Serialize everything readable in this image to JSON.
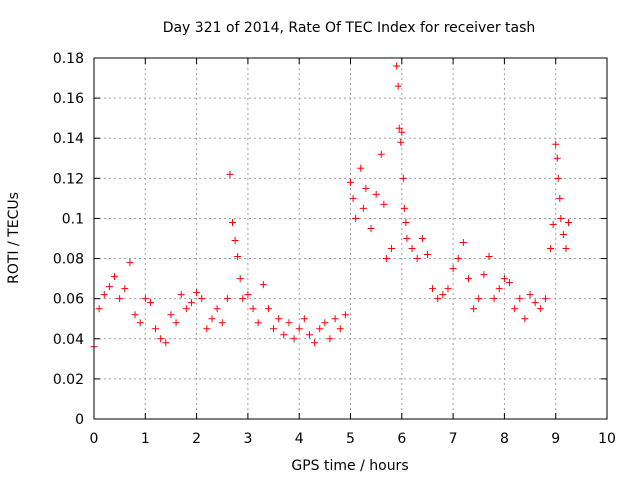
{
  "chart_data": {
    "type": "scatter",
    "title": "Day 321 of 2014, Rate Of TEC Index for receiver tash",
    "xlabel": "GPS time / hours",
    "ylabel": "ROTI / TECUs",
    "xlim": [
      0,
      10
    ],
    "ylim": [
      0,
      0.18
    ],
    "x_ticks": [
      "0",
      "1",
      "2",
      "3",
      "4",
      "5",
      "6",
      "7",
      "8",
      "9",
      "10"
    ],
    "y_ticks": [
      "0",
      "0.02",
      "0.04",
      "0.06",
      "0.08",
      "0.1",
      "0.12",
      "0.14",
      "0.16",
      "0.18"
    ],
    "grid": true,
    "marker": "+",
    "series_color": "#ff0000",
    "series": [
      {
        "name": "ROTI",
        "x": [
          0.0,
          0.1,
          0.2,
          0.3,
          0.4,
          0.5,
          0.6,
          0.7,
          0.8,
          0.9,
          1.0,
          1.1,
          1.2,
          1.3,
          1.4,
          1.5,
          1.6,
          1.7,
          1.8,
          1.9,
          2.0,
          2.1,
          2.2,
          2.3,
          2.4,
          2.5,
          2.6,
          2.65,
          2.7,
          2.75,
          2.8,
          2.85,
          2.9,
          3.0,
          3.1,
          3.2,
          3.3,
          3.4,
          3.5,
          3.6,
          3.7,
          3.8,
          3.9,
          4.0,
          4.1,
          4.2,
          4.3,
          4.4,
          4.5,
          4.6,
          4.7,
          4.8,
          4.9,
          5.0,
          5.05,
          5.1,
          5.2,
          5.25,
          5.3,
          5.4,
          5.5,
          5.6,
          5.65,
          5.7,
          5.8,
          5.9,
          5.93,
          5.95,
          5.98,
          6.0,
          6.03,
          6.05,
          6.08,
          6.1,
          6.2,
          6.3,
          6.4,
          6.5,
          6.6,
          6.7,
          6.8,
          6.9,
          7.0,
          7.1,
          7.2,
          7.3,
          7.4,
          7.5,
          7.6,
          7.7,
          7.8,
          7.9,
          8.0,
          8.1,
          8.2,
          8.3,
          8.4,
          8.5,
          8.6,
          8.7,
          8.8,
          8.9,
          8.95,
          9.0,
          9.03,
          9.05,
          9.08,
          9.1,
          9.15,
          9.2,
          9.25
        ],
        "y": [
          0.036,
          0.055,
          0.062,
          0.066,
          0.071,
          0.06,
          0.065,
          0.078,
          0.052,
          0.048,
          0.06,
          0.058,
          0.045,
          0.04,
          0.038,
          0.052,
          0.048,
          0.062,
          0.055,
          0.058,
          0.063,
          0.06,
          0.045,
          0.05,
          0.055,
          0.048,
          0.06,
          0.122,
          0.098,
          0.089,
          0.081,
          0.07,
          0.06,
          0.062,
          0.055,
          0.048,
          0.067,
          0.055,
          0.045,
          0.05,
          0.042,
          0.048,
          0.04,
          0.045,
          0.05,
          0.042,
          0.038,
          0.045,
          0.048,
          0.04,
          0.05,
          0.045,
          0.052,
          0.118,
          0.11,
          0.1,
          0.125,
          0.105,
          0.115,
          0.095,
          0.112,
          0.132,
          0.107,
          0.08,
          0.085,
          0.176,
          0.166,
          0.145,
          0.138,
          0.143,
          0.12,
          0.105,
          0.098,
          0.09,
          0.085,
          0.08,
          0.09,
          0.082,
          0.065,
          0.06,
          0.062,
          0.065,
          0.075,
          0.08,
          0.088,
          0.07,
          0.055,
          0.06,
          0.072,
          0.081,
          0.06,
          0.065,
          0.07,
          0.068,
          0.055,
          0.06,
          0.05,
          0.062,
          0.058,
          0.055,
          0.06,
          0.085,
          0.097,
          0.137,
          0.13,
          0.12,
          0.11,
          0.1,
          0.092,
          0.085,
          0.098
        ]
      }
    ]
  }
}
